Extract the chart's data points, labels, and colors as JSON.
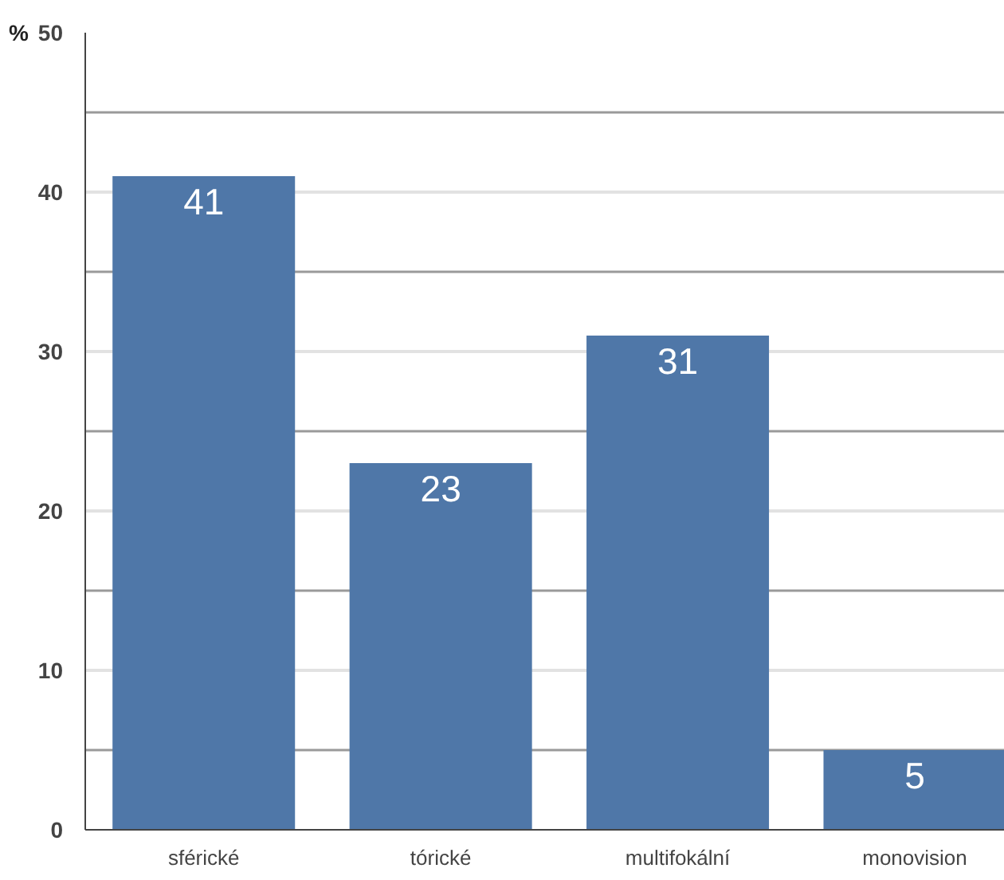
{
  "chart_data": {
    "type": "bar",
    "ylabel": "%",
    "categories": [
      "sférické",
      "tórické",
      "multifokální",
      "monovision"
    ],
    "values": [
      41,
      23,
      31,
      5
    ],
    "color": "#4f77a8",
    "ylim": [
      0,
      50
    ],
    "yticks": [
      0,
      {
        "value": 5,
        "label": null
      },
      10,
      {
        "value": 15,
        "label": null
      },
      20,
      {
        "value": 25,
        "label": null
      },
      30,
      {
        "value": 35,
        "label": null
      },
      40,
      {
        "value": 45,
        "label": null
      },
      50
    ],
    "grid": "y",
    "data_labels": true
  }
}
